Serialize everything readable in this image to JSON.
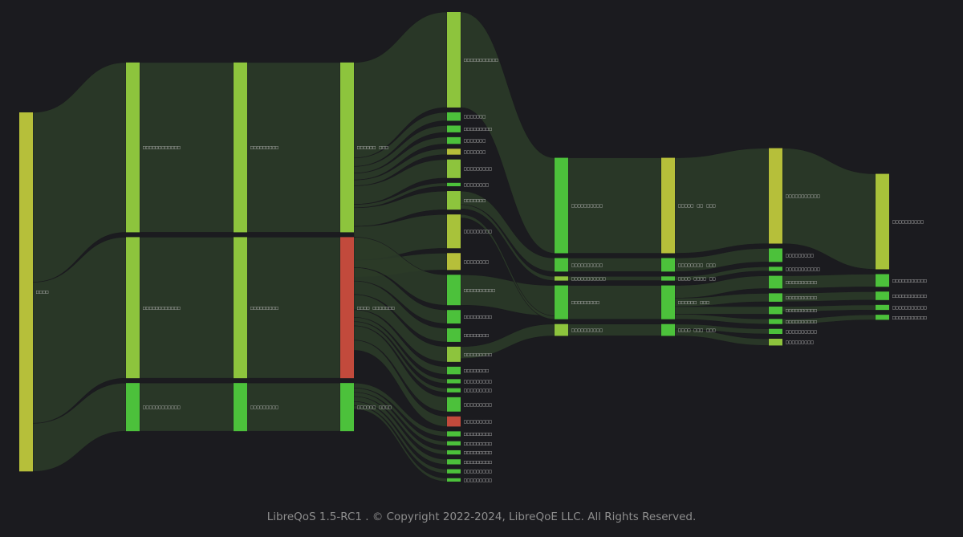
{
  "footer": {
    "text": "LibreQoS 1.5-RC1 . © Copyright 2022-2024, LibreQoE LLC. All Rights Reserved."
  },
  "colors": {
    "background": "#1b1b1f",
    "link_green": "#2b3b28",
    "node_yellow": "#b6bf3a",
    "node_lightgreen": "#8dc43d",
    "node_green": "#4cc13b",
    "node_red": "#c24a3c"
  },
  "sankey": {
    "levels": 9,
    "nodes": [
      {
        "id": "root",
        "label": "□□□□",
        "level": 0,
        "weight": 425,
        "color": "#b6bf3a",
        "label_pos": "inside"
      },
      {
        "id": "a1",
        "label": "□□□□□□□□□□□□",
        "level": 1,
        "weight": 201,
        "color": "#8dc43d",
        "label_pos": "right"
      },
      {
        "id": "a2",
        "label": "□□□□□□□□□□□□",
        "level": 1,
        "weight": 167,
        "color": "#8dc43d",
        "label_pos": "right"
      },
      {
        "id": "a3",
        "label": "□□□□□□□□□□□□",
        "level": 1,
        "weight": 57,
        "color": "#4cc13b",
        "label_pos": "right"
      },
      {
        "id": "b1",
        "label": "□□□□□□□□□",
        "level": 2,
        "weight": 201,
        "color": "#8dc43d",
        "label_pos": "right"
      },
      {
        "id": "b2",
        "label": "□□□□□□□□□",
        "level": 2,
        "weight": 167,
        "color": "#8dc43d",
        "label_pos": "right"
      },
      {
        "id": "b3",
        "label": "□□□□□□□□□",
        "level": 2,
        "weight": 57,
        "color": "#4cc13b",
        "label_pos": "right"
      },
      {
        "id": "c1",
        "label": "□□□□□□  □□□",
        "level": 3,
        "weight": 201,
        "color": "#8dc43d",
        "label_pos": "right"
      },
      {
        "id": "c2",
        "label": "□□□□  □□□□□□□",
        "level": 3,
        "weight": 167,
        "color": "#c24a3c",
        "label_pos": "right"
      },
      {
        "id": "c3",
        "label": "□□□□□□  □□□□",
        "level": 3,
        "weight": 57,
        "color": "#4cc13b",
        "label_pos": "right"
      },
      {
        "id": "d1",
        "label": "□□□□□□□□□□□",
        "level": 4,
        "weight": 113,
        "color": "#8dc43d",
        "label_pos": "right"
      },
      {
        "id": "d2",
        "label": "□□□□□□□",
        "level": 4,
        "weight": 10,
        "color": "#4cc13b",
        "label_pos": "right"
      },
      {
        "id": "d3",
        "label": "□□□□□□□□□",
        "level": 4,
        "weight": 8,
        "color": "#4cc13b",
        "label_pos": "right"
      },
      {
        "id": "d4",
        "label": "□□□□□□□",
        "level": 4,
        "weight": 8,
        "color": "#4cc13b",
        "label_pos": "right"
      },
      {
        "id": "d5",
        "label": "□□□□□□□",
        "level": 4,
        "weight": 7,
        "color": "#b6bf3a",
        "label_pos": "right"
      },
      {
        "id": "d6",
        "label": "□□□□□□□□□",
        "level": 4,
        "weight": 22,
        "color": "#8dc43d",
        "label_pos": "right"
      },
      {
        "id": "d7",
        "label": "□□□□□□□□",
        "level": 4,
        "weight": 4,
        "color": "#4cc13b",
        "label_pos": "right"
      },
      {
        "id": "d8",
        "label": "□□□□□□□",
        "level": 4,
        "weight": 22,
        "color": "#8dc43d",
        "label_pos": "right"
      },
      {
        "id": "d9",
        "label": "□□□□□□□□□",
        "level": 4,
        "weight": 40,
        "color": "#a8c23a",
        "label_pos": "right"
      },
      {
        "id": "d10",
        "label": "□□□□□□□□",
        "level": 4,
        "weight": 20,
        "color": "#b6bf3a",
        "label_pos": "right"
      },
      {
        "id": "e1",
        "label": "□□□□□□□□□□",
        "level": 4,
        "weight": 36,
        "color": "#4cc13b",
        "label_pos": "right"
      },
      {
        "id": "e2",
        "label": "□□□□□□□□□",
        "level": 4,
        "weight": 16,
        "color": "#4cc13b",
        "label_pos": "right"
      },
      {
        "id": "e3",
        "label": "□□□□□□□□",
        "level": 4,
        "weight": 16,
        "color": "#4cc13b",
        "label_pos": "right"
      },
      {
        "id": "e4",
        "label": "□□□□□□□□□",
        "level": 4,
        "weight": 18,
        "color": "#8dc43d",
        "label_pos": "right"
      },
      {
        "id": "e5",
        "label": "□□□□□□□□",
        "level": 4,
        "weight": 9,
        "color": "#4cc13b",
        "label_pos": "right"
      },
      {
        "id": "e6",
        "label": "□□□□□□□□□",
        "level": 4,
        "weight": 5,
        "color": "#4cc13b",
        "label_pos": "right"
      },
      {
        "id": "e7",
        "label": "□□□□□□□□□",
        "level": 4,
        "weight": 5,
        "color": "#4cc13b",
        "label_pos": "right"
      },
      {
        "id": "e8",
        "label": "□□□□□□□□□",
        "level": 4,
        "weight": 17,
        "color": "#4cc13b",
        "label_pos": "right"
      },
      {
        "id": "e9",
        "label": "□□□□□□□□□",
        "level": 4,
        "weight": 12,
        "color": "#c24a3c",
        "label_pos": "right"
      },
      {
        "id": "f1",
        "label": "□□□□□□□□□",
        "level": 4,
        "weight": 6,
        "color": "#4cc13b",
        "label_pos": "right"
      },
      {
        "id": "f2",
        "label": "□□□□□□□□□",
        "level": 4,
        "weight": 5,
        "color": "#4cc13b",
        "label_pos": "right"
      },
      {
        "id": "f3",
        "label": "□□□□□□□□□",
        "level": 4,
        "weight": 5,
        "color": "#4cc13b",
        "label_pos": "right"
      },
      {
        "id": "f4",
        "label": "□□□□□□□□□",
        "level": 4,
        "weight": 6,
        "color": "#4cc13b",
        "label_pos": "right"
      },
      {
        "id": "f5",
        "label": "□□□□□□□□□",
        "level": 4,
        "weight": 5,
        "color": "#4cc13b",
        "label_pos": "right"
      },
      {
        "id": "f6",
        "label": "□□□□□□□□□",
        "level": 4,
        "weight": 4,
        "color": "#4cc13b",
        "label_pos": "right"
      },
      {
        "id": "g1",
        "label": "□□□□□□□□□□",
        "level": 5,
        "weight": 113,
        "color": "#4cc13b",
        "label_pos": "right"
      },
      {
        "id": "g2",
        "label": "□□□□□□□□□□",
        "level": 5,
        "weight": 16,
        "color": "#4cc13b",
        "label_pos": "right"
      },
      {
        "id": "g3",
        "label": "□□□□□□□□□□□",
        "level": 5,
        "weight": 5,
        "color": "#8dc43d",
        "label_pos": "right"
      },
      {
        "id": "g4",
        "label": "□□□□□□□□□",
        "level": 5,
        "weight": 40,
        "color": "#4cc13b",
        "label_pos": "right"
      },
      {
        "id": "g5",
        "label": "□□□□□□□□□□",
        "level": 5,
        "weight": 14,
        "color": "#8dc43d",
        "label_pos": "right"
      },
      {
        "id": "h1",
        "label": "□□□□□  □□  □□□",
        "level": 6,
        "weight": 113,
        "color": "#b6bf3a",
        "label_pos": "right"
      },
      {
        "id": "h2",
        "label": "□□□□□□□□  □□□",
        "level": 6,
        "weight": 16,
        "color": "#4cc13b",
        "label_pos": "right"
      },
      {
        "id": "h3",
        "label": "□□□□  □□□□  □□",
        "level": 6,
        "weight": 5,
        "color": "#4cc13b",
        "label_pos": "right"
      },
      {
        "id": "h4",
        "label": "□□□□□□  □□□",
        "level": 6,
        "weight": 40,
        "color": "#4cc13b",
        "label_pos": "right"
      },
      {
        "id": "h5",
        "label": "□□□□  □□□  □□□",
        "level": 6,
        "weight": 14,
        "color": "#4cc13b",
        "label_pos": "right"
      },
      {
        "id": "i1",
        "label": "□□□□□□□□□□□",
        "level": 7,
        "weight": 113,
        "color": "#b6bf3a",
        "label_pos": "right"
      },
      {
        "id": "i2",
        "label": "□□□□□□□□□",
        "level": 7,
        "weight": 16,
        "color": "#4cc13b",
        "label_pos": "right"
      },
      {
        "id": "i3",
        "label": "□□□□□□□□□□□",
        "level": 7,
        "weight": 5,
        "color": "#4cc13b",
        "label_pos": "right"
      },
      {
        "id": "i4",
        "label": "□□□□□□□□□□",
        "level": 7,
        "weight": 15,
        "color": "#4cc13b",
        "label_pos": "right"
      },
      {
        "id": "i5",
        "label": "□□□□□□□□□□",
        "level": 7,
        "weight": 10,
        "color": "#4cc13b",
        "label_pos": "right"
      },
      {
        "id": "i6",
        "label": "□□□□□□□□□□",
        "level": 7,
        "weight": 9,
        "color": "#4cc13b",
        "label_pos": "right"
      },
      {
        "id": "i7",
        "label": "□□□□□□□□□□",
        "level": 7,
        "weight": 6,
        "color": "#4cc13b",
        "label_pos": "right"
      },
      {
        "id": "i8",
        "label": "□□□□□□□□□□",
        "level": 7,
        "weight": 6,
        "color": "#4cc13b",
        "label_pos": "right"
      },
      {
        "id": "i9",
        "label": "□□□□□□□□□",
        "level": 7,
        "weight": 8,
        "color": "#8dc43d",
        "label_pos": "right"
      },
      {
        "id": "j1",
        "label": "□□□□□□□□□□",
        "level": 8,
        "weight": 113,
        "color": "#a8c23a",
        "label_pos": "right"
      },
      {
        "id": "j2",
        "label": "□□□□□□□□□□□",
        "level": 8,
        "weight": 15,
        "color": "#4cc13b",
        "label_pos": "right"
      },
      {
        "id": "j3",
        "label": "□□□□□□□□□□□",
        "level": 8,
        "weight": 10,
        "color": "#4cc13b",
        "label_pos": "right"
      },
      {
        "id": "j4",
        "label": "□□□□□□□□□□□",
        "level": 8,
        "weight": 6,
        "color": "#4cc13b",
        "label_pos": "right"
      },
      {
        "id": "j5",
        "label": "□□□□□□□□□□□",
        "level": 8,
        "weight": 6,
        "color": "#4cc13b",
        "label_pos": "right"
      }
    ],
    "links": [
      [
        "root",
        "a1",
        201
      ],
      [
        "root",
        "a2",
        167
      ],
      [
        "root",
        "a3",
        57
      ],
      [
        "a1",
        "b1",
        201
      ],
      [
        "a2",
        "b2",
        167
      ],
      [
        "a3",
        "b3",
        57
      ],
      [
        "b1",
        "c1",
        201
      ],
      [
        "b2",
        "c2",
        167
      ],
      [
        "b3",
        "c3",
        57
      ],
      [
        "c1",
        "d1",
        113
      ],
      [
        "c1",
        "d2",
        10
      ],
      [
        "c1",
        "d3",
        8
      ],
      [
        "c1",
        "d4",
        8
      ],
      [
        "c1",
        "d5",
        7
      ],
      [
        "c1",
        "d6",
        22
      ],
      [
        "c1",
        "d7",
        4
      ],
      [
        "c1",
        "d8",
        22
      ],
      [
        "c1",
        "d9",
        40
      ],
      [
        "c1",
        "d10",
        20
      ],
      [
        "c2",
        "e1",
        36
      ],
      [
        "c2",
        "e2",
        16
      ],
      [
        "c2",
        "e3",
        16
      ],
      [
        "c2",
        "e4",
        18
      ],
      [
        "c2",
        "e5",
        9
      ],
      [
        "c2",
        "e6",
        5
      ],
      [
        "c2",
        "e7",
        5
      ],
      [
        "c2",
        "e8",
        17
      ],
      [
        "c2",
        "e9",
        12
      ],
      [
        "c3",
        "f1",
        6
      ],
      [
        "c3",
        "f2",
        5
      ],
      [
        "c3",
        "f3",
        5
      ],
      [
        "c3",
        "f4",
        6
      ],
      [
        "c3",
        "f5",
        5
      ],
      [
        "c3",
        "f6",
        4
      ],
      [
        "d1",
        "g1",
        113
      ],
      [
        "d8",
        "g2",
        16
      ],
      [
        "d8",
        "g3",
        5
      ],
      [
        "e1",
        "g4",
        36
      ],
      [
        "d9",
        "g4",
        4
      ],
      [
        "e4",
        "g5",
        14
      ],
      [
        "g1",
        "h1",
        113
      ],
      [
        "g2",
        "h2",
        16
      ],
      [
        "g3",
        "h3",
        5
      ],
      [
        "g4",
        "h4",
        40
      ],
      [
        "g5",
        "h5",
        14
      ],
      [
        "h1",
        "i1",
        113
      ],
      [
        "h2",
        "i2",
        16
      ],
      [
        "h3",
        "i3",
        5
      ],
      [
        "h4",
        "i4",
        15
      ],
      [
        "h4",
        "i5",
        10
      ],
      [
        "h4",
        "i6",
        9
      ],
      [
        "h4",
        "i7",
        6
      ],
      [
        "h5",
        "i8",
        6
      ],
      [
        "h5",
        "i9",
        8
      ],
      [
        "i1",
        "j1",
        113
      ],
      [
        "i4",
        "j2",
        15
      ],
      [
        "i5",
        "j3",
        10
      ],
      [
        "i6",
        "j4",
        6
      ],
      [
        "i7",
        "j5",
        6
      ]
    ]
  }
}
